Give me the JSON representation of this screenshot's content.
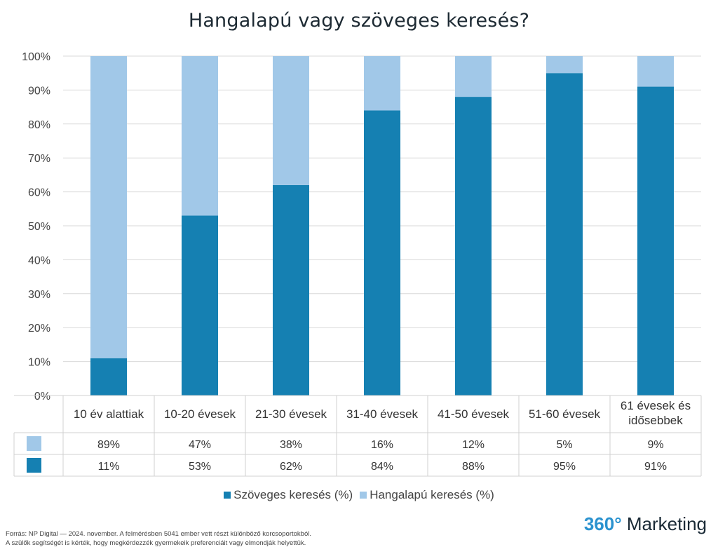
{
  "chart_data": {
    "type": "bar",
    "stacked": true,
    "title": "Hangalapú vagy szöveges keresés?",
    "categories": [
      [
        "10 év alattiak"
      ],
      [
        "10-20 évesek"
      ],
      [
        "21-30 évesek"
      ],
      [
        "31-40 évesek"
      ],
      [
        "41-50 évesek"
      ],
      [
        "51-60 évesek"
      ],
      [
        "61 évesek és",
        "idősebbek"
      ]
    ],
    "series": [
      {
        "name": "Szöveges keresés (%)",
        "color": "#1580b2",
        "values": [
          11,
          53,
          62,
          84,
          88,
          95,
          91
        ]
      },
      {
        "name": "Hangalapú keresés (%)",
        "color": "#a1c8e8",
        "values": [
          89,
          47,
          38,
          16,
          12,
          5,
          9
        ]
      }
    ],
    "ylim": [
      0,
      100
    ],
    "yticks": [
      "0%",
      "10%",
      "20%",
      "30%",
      "40%",
      "50%",
      "60%",
      "70%",
      "80%",
      "90%",
      "100%"
    ],
    "data_table": {
      "rows": [
        {
          "series": "Hangalapú keresés (%)",
          "cells": [
            "89%",
            "47%",
            "38%",
            "16%",
            "12%",
            "5%",
            "9%"
          ]
        },
        {
          "series": "Szöveges keresés (%)",
          "cells": [
            "11%",
            "53%",
            "62%",
            "84%",
            "88%",
            "95%",
            "91%"
          ]
        }
      ]
    },
    "grid": true,
    "legend_position": "bottom"
  },
  "footer": {
    "source_line1": "Forrás: NP Digital — 2024. november. A felmérésben 5041 ember vett részt különböző korcsoportokból.",
    "source_line2": "A szülők segítségét is kérték, hogy megkérdezzék gyermekeik preferenciáit vagy elmondják helyettük.",
    "brand_number": "360°",
    "brand_text": " Marketing"
  }
}
